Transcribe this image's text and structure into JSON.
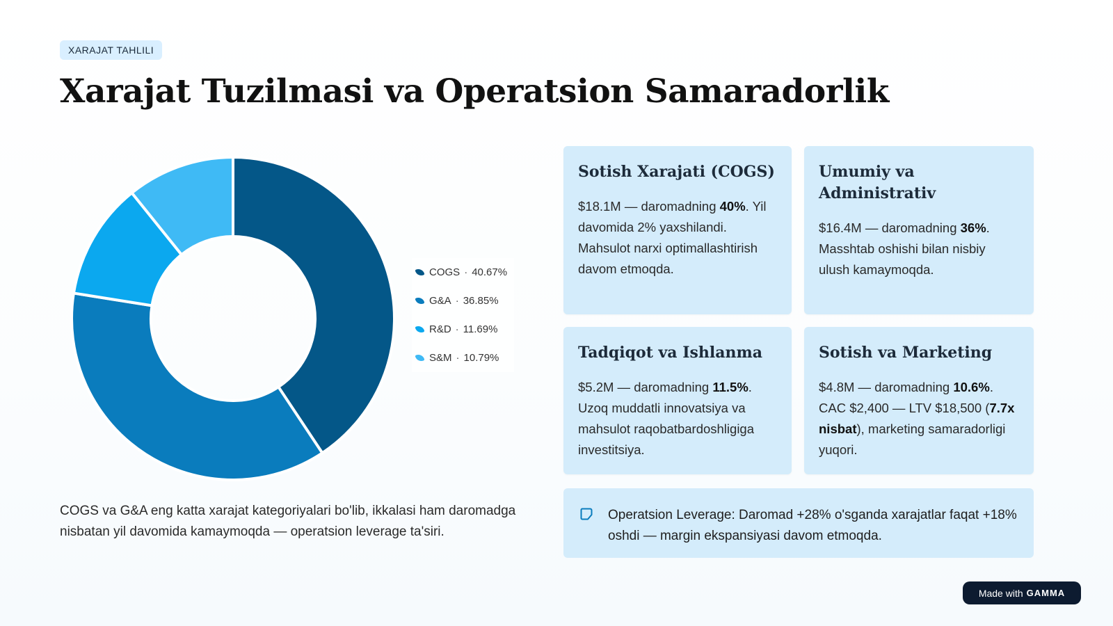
{
  "header": {
    "tag": "XARAJAT TAHLILI",
    "title": "Xarajat Tuzilmasi va Operatsion Samaradorlik"
  },
  "chart_data": {
    "type": "pie",
    "donut": true,
    "categories": [
      "COGS",
      "G&A",
      "R&D",
      "S&M"
    ],
    "values": [
      40.67,
      36.85,
      11.69,
      10.79
    ],
    "colors": [
      "#045788",
      "#0a7cbd",
      "#0ba8ef",
      "#3fbaf5"
    ],
    "legend": [
      {
        "label": "COGS",
        "value": "40.67%"
      },
      {
        "label": "G&A",
        "value": "36.85%"
      },
      {
        "label": "R&D",
        "value": "11.69%"
      },
      {
        "label": "S&M",
        "value": "10.79%"
      }
    ],
    "legend_position": "right"
  },
  "summary": "COGS va G&A eng katta xarajat kategoriyalari bo'lib, ikkalasi ham daromadga nisbatan yil davomida kamaymoqda — operatsion leverage ta'siri.",
  "cards": {
    "cogs": {
      "title": "Sotish Xarajati (COGS)",
      "text_pre": "$18.1M — daromadning ",
      "bold": "40%",
      "text_post": ". Yil davomida 2% yaxshilandi. Mahsulot narxi optimallashtirish davom etmoqda."
    },
    "ga": {
      "title": "Umumiy va Administrativ",
      "text_pre": "$16.4M — daromadning ",
      "bold": "36%",
      "text_post": ". Masshtab oshishi bilan nisbiy ulush kamaymoqda."
    },
    "rd": {
      "title": "Tadqiqot va Ishlanma",
      "text_pre": "$5.2M — daromadning ",
      "bold": "11.5%",
      "text_post": ". Uzoq muddatli innovatsiya va mahsulot raqobatbardoshligiga investitsiya."
    },
    "sm": {
      "title": "Sotish va Marketing",
      "text_pre": "$4.8M — daromadning ",
      "bold": "10.6%",
      "text_mid": ". CAC $2,400 — LTV $18,500 (",
      "bold2": "7.7x nisbat",
      "text_post": "), marketing samaradorligi yuqori."
    }
  },
  "callout": {
    "icon": "checkbox-icon",
    "text": "Operatsion Leverage: Daromad +28% o'sganda xarajatlar faqat +18% oshdi — margin ekspansiyasi davom etmoqda."
  },
  "badge": {
    "prefix": "Made with",
    "brand": "GAMMA"
  }
}
